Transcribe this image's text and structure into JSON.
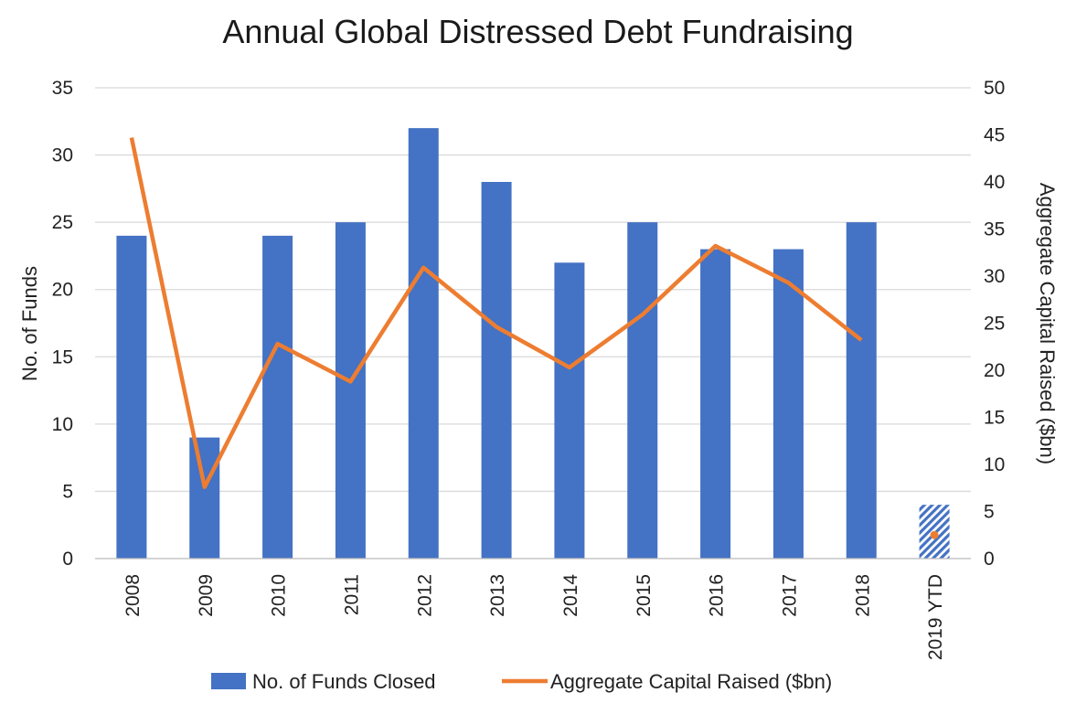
{
  "chart_data": {
    "type": "bar",
    "title": "Annual Global Distressed Debt Fundraising",
    "categories": [
      "2008",
      "2009",
      "2010",
      "2011",
      "2012",
      "2013",
      "2014",
      "2015",
      "2016",
      "2017",
      "2018",
      "2019 YTD"
    ],
    "series": [
      {
        "name": "No. of Funds Closed",
        "type": "bar",
        "axis": "left",
        "color": "#4472C4",
        "values": [
          24,
          9,
          24,
          25,
          32,
          28,
          22,
          25,
          23,
          23,
          25,
          4
        ],
        "hatched_categories": [
          "2019 YTD"
        ]
      },
      {
        "name": "Aggregate Capital Raised ($bn)",
        "type": "line",
        "axis": "right",
        "color": "#ED7D31",
        "values": [
          44.7,
          7.6,
          22.8,
          18.8,
          30.9,
          24.6,
          20.3,
          25.9,
          33.2,
          29.3,
          23.2,
          2.5
        ],
        "marker_only_categories": [
          "2019 YTD"
        ]
      }
    ],
    "y_left": {
      "label": "No. of Funds",
      "range": [
        0,
        35
      ],
      "ticks": [
        0,
        5,
        10,
        15,
        20,
        25,
        30,
        35
      ]
    },
    "y_right": {
      "label": "Aggregate Capital Raised ($bn)",
      "range": [
        0,
        50
      ],
      "ticks": [
        0,
        5,
        10,
        15,
        20,
        25,
        30,
        35,
        40,
        45,
        50
      ]
    },
    "grid": true,
    "legend_position": "bottom"
  }
}
